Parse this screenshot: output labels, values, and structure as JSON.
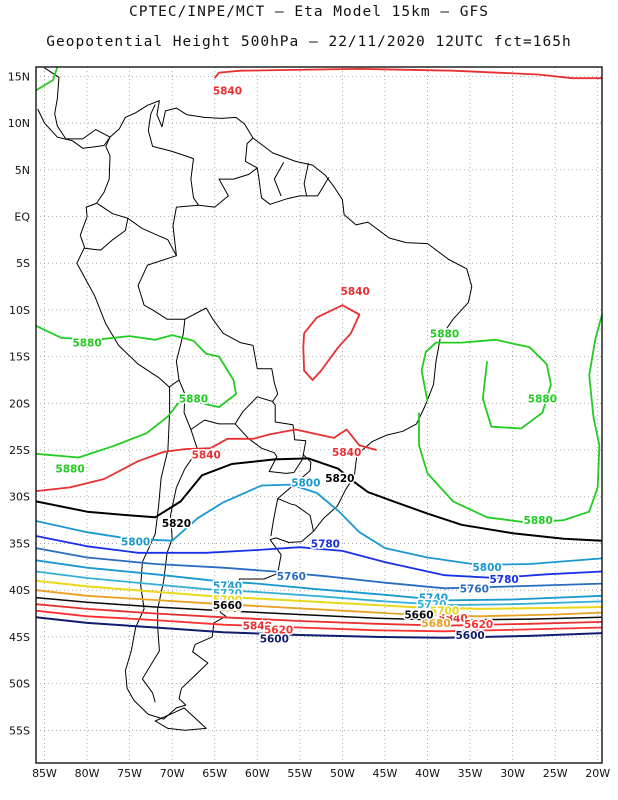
{
  "header": {
    "title_line1": "CPTEC/INPE/MCT –  Eta Model 15km – GFS",
    "title_line2": "Geopotential Height 500hPa – 22/11/2020 12UTC fct=165h"
  },
  "map": {
    "lat_labels": [
      "15N",
      "10N",
      "5N",
      "EQ",
      "5S",
      "10S",
      "15S",
      "20S",
      "25S",
      "30S",
      "35S",
      "40S",
      "45S",
      "50S",
      "55S"
    ],
    "lon_labels": [
      "85W",
      "80W",
      "75W",
      "70W",
      "65W",
      "60W",
      "55W",
      "50W",
      "45W",
      "40W",
      "35W",
      "30W",
      "25W",
      "20W"
    ],
    "grid": "dotted",
    "extent": {
      "lon": [
        -86,
        -19.5
      ],
      "lat": [
        -58.5,
        16
      ]
    }
  },
  "contours": [
    {
      "value": "5880",
      "color": "#22cc22",
      "labels": [
        {
          "text": "5880",
          "lon": -80,
          "lat": -13.5
        },
        {
          "text": "5880",
          "lon": -67.5,
          "lat": -19.5
        },
        {
          "text": "5880",
          "lon": -82,
          "lat": -27
        },
        {
          "text": "5880",
          "lon": -38,
          "lat": -12.5
        },
        {
          "text": "5880",
          "lon": -26.5,
          "lat": -19.5
        },
        {
          "text": "5880",
          "lon": -27,
          "lat": -32.5
        }
      ]
    },
    {
      "value": "5840",
      "color": "#e83030",
      "labels": [
        {
          "text": "5840",
          "lon": -63.5,
          "lat": 13.5
        },
        {
          "text": "5840",
          "lon": -48.5,
          "lat": -8
        },
        {
          "text": "5840",
          "lon": -66,
          "lat": -25.5
        },
        {
          "text": "5840",
          "lon": -49.5,
          "lat": -25.2
        },
        {
          "text": "5840",
          "lon": -37,
          "lat": -43
        },
        {
          "text": "5840",
          "lon": -60,
          "lat": -43.8
        }
      ]
    },
    {
      "value": "5820",
      "color": "#000000",
      "labels": [
        {
          "text": "5820",
          "lon": -69.5,
          "lat": -32.8
        },
        {
          "text": "5820",
          "lon": -50.3,
          "lat": -28
        }
      ]
    },
    {
      "value": "5800",
      "color": "#1a98d0",
      "labels": [
        {
          "text": "5800",
          "lon": -54.3,
          "lat": -28.5
        },
        {
          "text": "5800",
          "lon": -74.3,
          "lat": -34.8
        },
        {
          "text": "5800",
          "lon": -33,
          "lat": -37.5
        }
      ]
    },
    {
      "value": "5780",
      "color": "#1a30e8",
      "labels": [
        {
          "text": "5780",
          "lon": -52,
          "lat": -35
        },
        {
          "text": "5780",
          "lon": -31,
          "lat": -38.8
        }
      ]
    },
    {
      "value": "5760",
      "color": "#2a6cc0",
      "labels": [
        {
          "text": "5760",
          "lon": -56,
          "lat": -38.5
        },
        {
          "text": "5760",
          "lon": -34.5,
          "lat": -39.8
        }
      ]
    },
    {
      "value": "5740",
      "color": "#1a98d0",
      "labels": [
        {
          "text": "5740",
          "lon": -63.5,
          "lat": -39.5
        },
        {
          "text": "5740",
          "lon": -39.3,
          "lat": -40.8
        }
      ]
    },
    {
      "value": "5720",
      "color": "#34b0d4",
      "labels": [
        {
          "text": "5720",
          "lon": -63.5,
          "lat": -40.3
        },
        {
          "text": "5720",
          "lon": -39.5,
          "lat": -41.5
        }
      ]
    },
    {
      "value": "5700",
      "color": "#e8d818",
      "labels": [
        {
          "text": "5700",
          "lon": -63.5,
          "lat": -41.0
        },
        {
          "text": "5700",
          "lon": -38,
          "lat": -42.2
        }
      ]
    },
    {
      "value": "5680",
      "color": "#e8a020",
      "labels": [
        {
          "text": "5680",
          "lon": -63.5,
          "lat": -41.8
        },
        {
          "text": "5680",
          "lon": -39,
          "lat": -43.5
        }
      ]
    },
    {
      "value": "5660",
      "color": "#0a0a0a",
      "labels": [
        {
          "text": "5660",
          "lon": -63.5,
          "lat": -41.6
        },
        {
          "text": "5660",
          "lon": -41,
          "lat": -42.6
        }
      ]
    },
    {
      "value": "5620",
      "color": "#ff3030",
      "labels": [
        {
          "text": "5620",
          "lon": -57.5,
          "lat": -44.2
        },
        {
          "text": "5620",
          "lon": -34,
          "lat": -43.6
        }
      ]
    },
    {
      "value": "5600",
      "color": "#101c6e",
      "labels": [
        {
          "text": "5600",
          "lon": -58,
          "lat": -45.2
        },
        {
          "text": "5600",
          "lon": -35,
          "lat": -44.8
        }
      ]
    }
  ]
}
